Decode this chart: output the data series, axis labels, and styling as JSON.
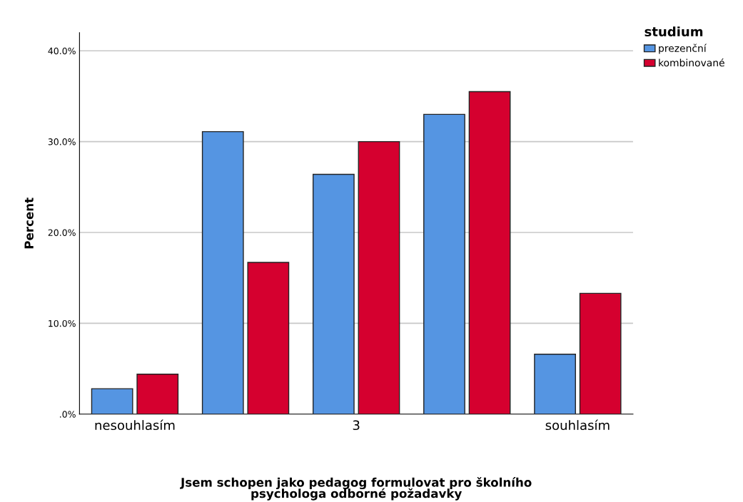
{
  "chart_data": {
    "type": "bar",
    "xlabel": "Jsem schopen jako pedagog formulovat pro školního\npsychologa odborné požadavky",
    "ylabel": "Percent",
    "legend_title": "studium",
    "categories": [
      "nesouhlasím",
      null,
      "3",
      null,
      "souhlasím"
    ],
    "series": [
      {
        "name": "prezenční",
        "color": "#5595e2",
        "values": [
          2.8,
          31.1,
          26.4,
          33.0,
          6.6
        ]
      },
      {
        "name": "kombinované",
        "color": "#d5002f",
        "values": [
          4.4,
          16.7,
          30.0,
          35.5,
          13.3
        ]
      }
    ],
    "ylim": [
      0,
      42
    ],
    "yticks": [
      {
        "value": 0,
        "label": ".0%"
      },
      {
        "value": 10,
        "label": "10.0%"
      },
      {
        "value": 20,
        "label": "20.0%"
      },
      {
        "value": 30,
        "label": "30.0%"
      },
      {
        "value": 40,
        "label": "40.0%"
      }
    ],
    "grid": "y",
    "legend": "top right"
  }
}
